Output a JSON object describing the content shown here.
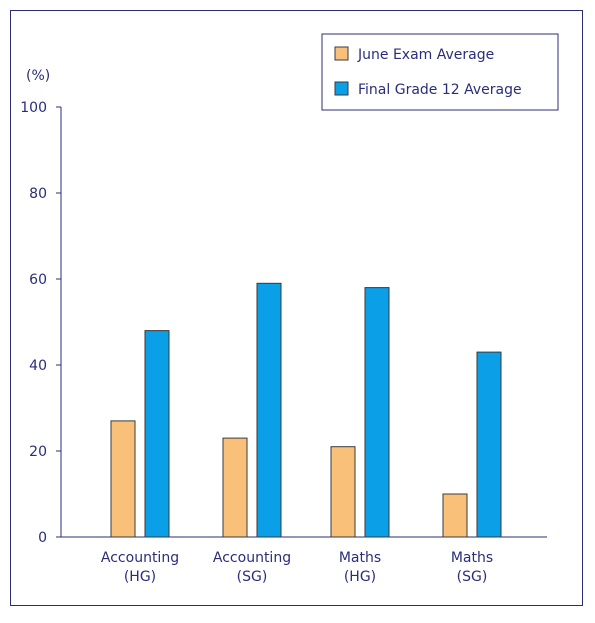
{
  "chart_data": {
    "type": "bar",
    "ylabel": "(%)",
    "ylim": [
      0,
      100
    ],
    "yticks": [
      0,
      20,
      40,
      60,
      80,
      100
    ],
    "categories": [
      [
        "Accounting",
        "(HG)"
      ],
      [
        "Accounting",
        "(SG)"
      ],
      [
        "Maths",
        "(HG)"
      ],
      [
        "Maths",
        "(SG)"
      ]
    ],
    "series": [
      {
        "name": "June Exam Average",
        "color": "#f9c07a",
        "values": [
          27,
          23,
          21,
          10
        ]
      },
      {
        "name": "Final Grade 12 Average",
        "color": "#0a9fe6",
        "values": [
          48,
          59,
          58,
          43
        ]
      }
    ],
    "legend_position": "top-right",
    "grid": false,
    "axis_color": "#2a2e7a",
    "bar_outline_color": "#3a3a3a"
  }
}
